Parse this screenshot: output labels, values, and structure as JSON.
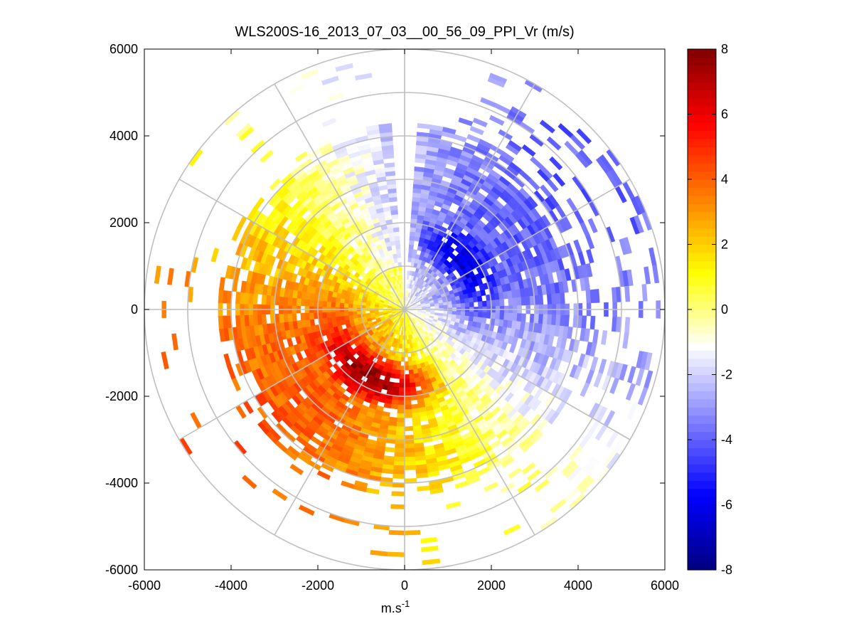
{
  "chart_data": {
    "type": "heatmap",
    "subtype": "polar_ppi_scan",
    "title": "WLS200S-16_2013_07_03__00_56_09_PPI_Vr (m/s)",
    "xlabel": "m.s",
    "xlabel_superscript": "-1",
    "ylabel": "",
    "xlim": [
      -6000,
      6000
    ],
    "ylim": [
      -6000,
      6000
    ],
    "xticks": [
      -6000,
      -4000,
      -2000,
      0,
      2000,
      4000,
      6000
    ],
    "yticks": [
      -6000,
      -4000,
      -2000,
      0,
      2000,
      4000,
      6000
    ],
    "xtick_labels": [
      "-6000",
      "-4000",
      "-2000",
      "0",
      "2000",
      "4000",
      "6000"
    ],
    "ytick_labels": [
      "-6000",
      "-4000",
      "-2000",
      "0",
      "2000",
      "4000",
      "6000"
    ],
    "polar_grid": {
      "ring_radii": [
        1000,
        2000,
        3000,
        4000,
        5000,
        6000
      ],
      "spoke_angles_deg": [
        0,
        30,
        60,
        90,
        120,
        150,
        180,
        210,
        240,
        270,
        300,
        330
      ]
    },
    "colorbar": {
      "min": -8,
      "max": 8,
      "ticks": [
        -8,
        -6,
        -4,
        -2,
        0,
        2,
        4,
        6,
        8
      ],
      "tick_labels": [
        "-8",
        "-6",
        "-4",
        "-2",
        "0",
        "2",
        "4",
        "6",
        "8"
      ],
      "colormap": [
        "#00007f",
        "#0000ff",
        "#8080ff",
        "#ffffff",
        "#ffff00",
        "#ff8000",
        "#ff0000",
        "#7f0000"
      ]
    },
    "data_gap_sectors_deg": [
      [
        -3,
        4
      ]
    ],
    "velocity_pattern": {
      "north_and_east_sectors": "negative radial velocity (-1 to -7 m/s), strongest near 1.5-2.5 km range",
      "south_and_west_sectors": "positive radial velocity (0 to 8 m/s), strongest near 1-2 km range to the south",
      "near_range_under_1km": "near zero (-1 to 1 m/s)",
      "beyond_4km": "sparse returns"
    }
  }
}
